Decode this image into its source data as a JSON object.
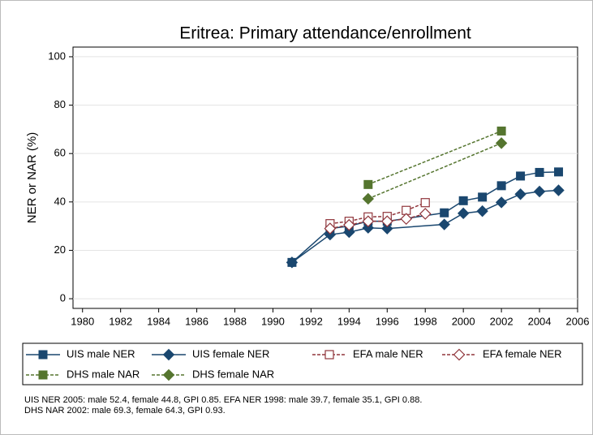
{
  "chart_data": {
    "type": "line",
    "title": "Eritrea: Primary attendance/enrollment",
    "ylabel": "NER or NAR (%)",
    "xlim": [
      1979.5,
      2006
    ],
    "ylim": [
      -4,
      104
    ],
    "xticks": [
      1980,
      1982,
      1984,
      1986,
      1988,
      1990,
      1992,
      1994,
      1996,
      1998,
      2000,
      2002,
      2004,
      2006
    ],
    "yticks": [
      0,
      20,
      40,
      60,
      80,
      100
    ],
    "grid": true,
    "legend": "bottom",
    "series": [
      {
        "name": "UIS male NER",
        "color": "#1a476f",
        "marker": "square",
        "dash": false,
        "x": [
          1991,
          1993,
          1994,
          1995,
          1996,
          1999,
          2000,
          2001,
          2002,
          2003,
          2004,
          2005
        ],
        "values": [
          15,
          29,
          30,
          32,
          32,
          35.5,
          40.5,
          42,
          46.7,
          50.7,
          52.2,
          52.4
        ]
      },
      {
        "name": "UIS female NER",
        "color": "#1a476f",
        "marker": "diamond",
        "dash": false,
        "x": [
          1991,
          1993,
          1994,
          1995,
          1996,
          1999,
          2000,
          2001,
          2002,
          2003,
          2004,
          2005
        ],
        "values": [
          15,
          26.5,
          27.5,
          29.3,
          29,
          30.7,
          35.3,
          36.2,
          39.8,
          43.2,
          44.3,
          44.8
        ]
      },
      {
        "name": "EFA male NER",
        "color": "#90353b",
        "marker": "square-hollow",
        "dash": true,
        "x": [
          1993,
          1994,
          1995,
          1996,
          1997,
          1998
        ],
        "values": [
          31,
          32,
          33.8,
          34,
          36.5,
          39.7
        ]
      },
      {
        "name": "EFA female NER",
        "color": "#90353b",
        "marker": "diamond-hollow",
        "dash": true,
        "x": [
          1993,
          1994,
          1995,
          1996,
          1997,
          1998
        ],
        "values": [
          29,
          30.5,
          32,
          32,
          33,
          35.1
        ]
      },
      {
        "name": "DHS male NAR",
        "color": "#55752f",
        "marker": "square",
        "dash": true,
        "x": [
          1995,
          2002
        ],
        "values": [
          47.2,
          69.3
        ]
      },
      {
        "name": "DHS female NAR",
        "color": "#55752f",
        "marker": "diamond",
        "dash": true,
        "x": [
          1995,
          2002
        ],
        "values": [
          41.3,
          64.3
        ]
      }
    ],
    "notes": [
      "UIS NER 2005: male 52.4, female 44.8, GPI 0.85. EFA NER 1998: male 39.7, female 35.1, GPI 0.88.",
      "DHS NAR 2002: male 69.3, female 64.3, GPI 0.93."
    ]
  }
}
